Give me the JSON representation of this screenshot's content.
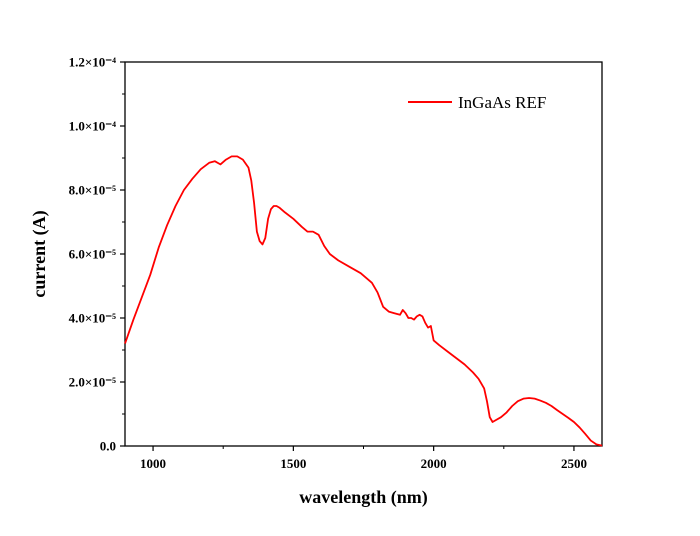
{
  "chart_data": {
    "type": "line",
    "title": "",
    "xlabel": "wavelength (nm)",
    "ylabel": "current (A)",
    "xlim": [
      900,
      2600
    ],
    "ylim": [
      0,
      0.00012
    ],
    "x_ticks": [
      1000,
      1500,
      2000,
      2500
    ],
    "x_tick_labels": [
      "1000",
      "1500",
      "2000",
      "2500"
    ],
    "y_ticks": [
      0,
      2e-05,
      4e-05,
      6e-05,
      8e-05,
      0.0001,
      0.00012
    ],
    "y_tick_labels": [
      "0.0",
      "2.0×10⁻⁵",
      "4.0×10⁻⁵",
      "6.0×10⁻⁵",
      "8.0×10⁻⁵",
      "1.0×10⁻⁴",
      "1.2×10⁻⁴"
    ],
    "grid": false,
    "legend_position": "top-right",
    "series": [
      {
        "name": "InGaAs REF",
        "color": "#ff0000",
        "x": [
          900,
          930,
          960,
          990,
          1020,
          1050,
          1080,
          1110,
          1140,
          1170,
          1200,
          1220,
          1240,
          1260,
          1280,
          1300,
          1320,
          1340,
          1350,
          1360,
          1370,
          1380,
          1390,
          1400,
          1410,
          1420,
          1430,
          1440,
          1450,
          1470,
          1500,
          1530,
          1550,
          1570,
          1590,
          1610,
          1630,
          1660,
          1700,
          1740,
          1780,
          1800,
          1820,
          1840,
          1860,
          1880,
          1890,
          1900,
          1910,
          1920,
          1930,
          1940,
          1950,
          1960,
          1970,
          1980,
          1990,
          2000,
          2020,
          2050,
          2080,
          2110,
          2140,
          2160,
          2180,
          2190,
          2200,
          2210,
          2220,
          2240,
          2260,
          2280,
          2300,
          2320,
          2340,
          2360,
          2380,
          2400,
          2420,
          2440,
          2460,
          2480,
          2500,
          2520,
          2540,
          2560,
          2580,
          2600
        ],
        "values": [
          3.2e-05,
          3.95e-05,
          4.65e-05,
          5.35e-05,
          6.2e-05,
          6.9e-05,
          7.5e-05,
          8e-05,
          8.35e-05,
          8.65e-05,
          8.85e-05,
          8.9e-05,
          8.8e-05,
          8.95e-05,
          9.05e-05,
          9.05e-05,
          8.95e-05,
          8.7e-05,
          8.3e-05,
          7.6e-05,
          6.7e-05,
          6.4e-05,
          6.3e-05,
          6.5e-05,
          7.1e-05,
          7.4e-05,
          7.5e-05,
          7.5e-05,
          7.45e-05,
          7.3e-05,
          7.1e-05,
          6.85e-05,
          6.7e-05,
          6.7e-05,
          6.6e-05,
          6.25e-05,
          6e-05,
          5.8e-05,
          5.6e-05,
          5.4e-05,
          5.1e-05,
          4.8e-05,
          4.35e-05,
          4.2e-05,
          4.15e-05,
          4.1e-05,
          4.25e-05,
          4.15e-05,
          4e-05,
          4e-05,
          3.95e-05,
          4.05e-05,
          4.1e-05,
          4.05e-05,
          3.85e-05,
          3.7e-05,
          3.75e-05,
          3.3e-05,
          3.15e-05,
          2.95e-05,
          2.75e-05,
          2.55e-05,
          2.3e-05,
          2.1e-05,
          1.8e-05,
          1.4e-05,
          9e-06,
          7.5e-06,
          8e-06,
          9e-06,
          1.05e-05,
          1.25e-05,
          1.4e-05,
          1.48e-05,
          1.5e-05,
          1.48e-05,
          1.42e-05,
          1.35e-05,
          1.25e-05,
          1.12e-05,
          1e-05,
          8.8e-06,
          7.5e-06,
          5.8e-06,
          3.8e-06,
          1.7e-06,
          5e-07,
          1e-07
        ]
      }
    ]
  }
}
